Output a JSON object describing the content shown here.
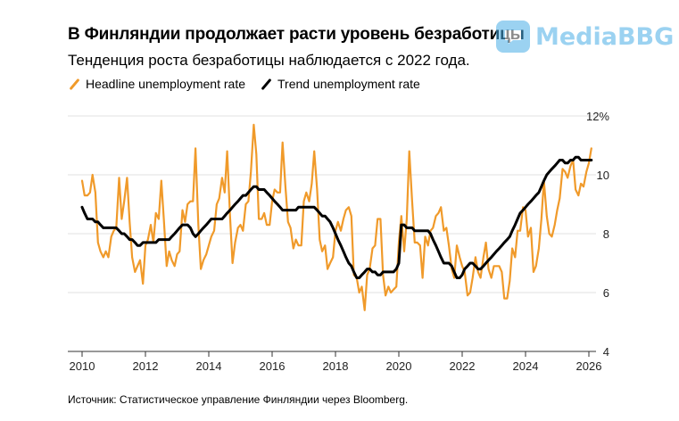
{
  "title": "В Финляндии продолжает расти уровень безработицы",
  "subtitle": "Тенденция роста безработицы наблюдается с 2022 года.",
  "legend": {
    "headline": "Headline unemployment rate",
    "trend": "Trend unemployment rate"
  },
  "source": "Источник: Статистическое управление Финляндии через Bloomberg.",
  "watermark": "MediaBBG",
  "colors": {
    "headline": "#f09a2a",
    "trend": "#000000",
    "grid": "#e0e0e0",
    "axis": "#333333",
    "watermark": "#4aaee6"
  },
  "chart_data": {
    "type": "line",
    "title": "В Финляндии продолжает расти уровень безработицы",
    "xlabel": "",
    "ylabel": "",
    "xlim": [
      2010,
      2026.3
    ],
    "ylim": [
      4,
      12
    ],
    "y_ticks": [
      4,
      6,
      8,
      10,
      12
    ],
    "y_tick_labels": [
      "4",
      "6",
      "8",
      "10",
      "12%"
    ],
    "x_ticks": [
      2010,
      2012,
      2014,
      2016,
      2018,
      2020,
      2022,
      2024,
      2026
    ],
    "x_tick_labels": [
      "2010",
      "2012",
      "2014",
      "2016",
      "2018",
      "2020",
      "2022",
      "2024",
      "2026"
    ],
    "grid": true,
    "series": [
      {
        "name": "Headline unemployment rate",
        "x": [
          2010.0,
          2010.08,
          2010.17,
          2010.25,
          2010.33,
          2010.42,
          2010.5,
          2010.58,
          2010.67,
          2010.75,
          2010.83,
          2010.92,
          2011.0,
          2011.08,
          2011.17,
          2011.25,
          2011.33,
          2011.42,
          2011.5,
          2011.58,
          2011.67,
          2011.75,
          2011.83,
          2011.92,
          2012.0,
          2012.08,
          2012.17,
          2012.25,
          2012.33,
          2012.42,
          2012.5,
          2012.58,
          2012.67,
          2012.75,
          2012.83,
          2012.92,
          2013.0,
          2013.08,
          2013.17,
          2013.25,
          2013.33,
          2013.42,
          2013.5,
          2013.58,
          2013.67,
          2013.75,
          2013.83,
          2013.92,
          2014.0,
          2014.08,
          2014.17,
          2014.25,
          2014.33,
          2014.42,
          2014.5,
          2014.58,
          2014.67,
          2014.75,
          2014.83,
          2014.92,
          2015.0,
          2015.08,
          2015.17,
          2015.25,
          2015.33,
          2015.42,
          2015.5,
          2015.58,
          2015.67,
          2015.75,
          2015.83,
          2015.92,
          2016.0,
          2016.08,
          2016.17,
          2016.25,
          2016.33,
          2016.42,
          2016.5,
          2016.58,
          2016.67,
          2016.75,
          2016.83,
          2016.92,
          2017.0,
          2017.08,
          2017.17,
          2017.25,
          2017.33,
          2017.42,
          2017.5,
          2017.58,
          2017.67,
          2017.75,
          2017.83,
          2017.92,
          2018.0,
          2018.08,
          2018.17,
          2018.25,
          2018.33,
          2018.42,
          2018.5,
          2018.58,
          2018.67,
          2018.75,
          2018.83,
          2018.92,
          2019.0,
          2019.08,
          2019.17,
          2019.25,
          2019.33,
          2019.42,
          2019.5,
          2019.58,
          2019.67,
          2019.75,
          2019.83,
          2019.92,
          2020.0,
          2020.08,
          2020.17,
          2020.25,
          2020.33,
          2020.42,
          2020.5,
          2020.58,
          2020.67,
          2020.75,
          2020.83,
          2020.92,
          2021.0,
          2021.08,
          2021.17,
          2021.25,
          2021.33,
          2021.42,
          2021.5,
          2021.58,
          2021.67,
          2021.75,
          2021.83,
          2021.92,
          2022.0,
          2022.08,
          2022.17,
          2022.25,
          2022.33,
          2022.42,
          2022.5,
          2022.58,
          2022.67,
          2022.75,
          2022.83,
          2022.92,
          2023.0,
          2023.08,
          2023.17,
          2023.25,
          2023.33,
          2023.42,
          2023.5,
          2023.58,
          2023.67,
          2023.75,
          2023.83,
          2023.92,
          2024.0,
          2024.08,
          2024.17,
          2024.25,
          2024.33,
          2024.42,
          2024.5,
          2024.58,
          2024.67,
          2024.75,
          2024.83,
          2024.92,
          2025.0,
          2025.08,
          2025.17,
          2025.25,
          2025.33,
          2025.42,
          2025.5,
          2025.58,
          2025.67,
          2025.75,
          2025.83,
          2025.92,
          2026.0,
          2026.08
        ],
        "values": [
          9.8,
          9.3,
          9.3,
          9.4,
          10.0,
          9.4,
          7.7,
          7.4,
          7.2,
          7.4,
          7.2,
          7.9,
          8.1,
          8.2,
          9.9,
          8.5,
          9.1,
          9.9,
          8.4,
          7.2,
          6.7,
          6.9,
          7.1,
          6.3,
          7.6,
          7.8,
          8.3,
          7.7,
          8.7,
          8.5,
          9.8,
          8.5,
          6.9,
          7.4,
          7.1,
          6.9,
          7.3,
          7.4,
          8.8,
          8.4,
          9.0,
          9.1,
          9.1,
          10.9,
          8.3,
          6.8,
          7.1,
          7.3,
          7.6,
          7.9,
          8.1,
          9.0,
          9.2,
          9.9,
          9.4,
          10.8,
          8.6,
          7.0,
          7.7,
          8.2,
          8.3,
          8.1,
          9.0,
          9.1,
          10.1,
          11.7,
          10.7,
          8.5,
          8.5,
          8.7,
          8.3,
          8.3,
          9.1,
          9.5,
          9.4,
          9.4,
          11.1,
          9.6,
          8.4,
          8.2,
          7.5,
          7.8,
          7.6,
          7.6,
          9.1,
          9.4,
          9.1,
          9.7,
          10.8,
          9.5,
          7.8,
          7.4,
          7.6,
          6.8,
          7.0,
          7.2,
          8.1,
          8.4,
          8.1,
          8.5,
          8.8,
          8.9,
          8.6,
          6.6,
          6.5,
          6.0,
          6.2,
          5.4,
          6.6,
          6.8,
          7.5,
          7.6,
          8.5,
          8.5,
          6.6,
          5.9,
          6.2,
          6.0,
          6.1,
          6.2,
          7.7,
          8.6,
          7.4,
          8.5,
          10.8,
          9.1,
          7.7,
          7.7,
          7.6,
          6.5,
          7.9,
          7.6,
          8.1,
          8.2,
          8.6,
          8.7,
          8.9,
          8.1,
          8.2,
          7.6,
          6.8,
          6.5,
          7.6,
          7.2,
          6.9,
          6.7,
          5.9,
          6.0,
          6.5,
          7.2,
          6.7,
          6.5,
          7.2,
          7.7,
          6.8,
          6.5,
          6.9,
          6.9,
          6.9,
          6.7,
          5.8,
          5.8,
          6.4,
          7.5,
          7.2,
          8.1,
          8.1,
          8.9,
          8.8,
          7.9,
          8.2,
          6.7,
          6.9,
          7.5,
          8.5,
          9.8,
          8.6,
          8.0,
          7.9,
          8.3,
          8.8,
          9.2,
          10.2,
          10.1,
          9.9,
          10.3,
          10.5,
          9.5,
          9.3,
          9.7,
          9.6,
          10.1,
          10.4,
          10.9
        ]
      },
      {
        "name": "Trend unemployment rate",
        "x": [
          2010.0,
          2010.08,
          2010.17,
          2010.25,
          2010.33,
          2010.42,
          2010.5,
          2010.58,
          2010.67,
          2010.75,
          2010.83,
          2010.92,
          2011.0,
          2011.08,
          2011.17,
          2011.25,
          2011.33,
          2011.42,
          2011.5,
          2011.58,
          2011.67,
          2011.75,
          2011.83,
          2011.92,
          2012.0,
          2012.08,
          2012.17,
          2012.25,
          2012.33,
          2012.42,
          2012.5,
          2012.58,
          2012.67,
          2012.75,
          2012.83,
          2012.92,
          2013.0,
          2013.08,
          2013.17,
          2013.25,
          2013.33,
          2013.42,
          2013.5,
          2013.58,
          2013.67,
          2013.75,
          2013.83,
          2013.92,
          2014.0,
          2014.08,
          2014.17,
          2014.25,
          2014.33,
          2014.42,
          2014.5,
          2014.58,
          2014.67,
          2014.75,
          2014.83,
          2014.92,
          2015.0,
          2015.08,
          2015.17,
          2015.25,
          2015.33,
          2015.42,
          2015.5,
          2015.58,
          2015.67,
          2015.75,
          2015.83,
          2015.92,
          2016.0,
          2016.08,
          2016.17,
          2016.25,
          2016.33,
          2016.42,
          2016.5,
          2016.58,
          2016.67,
          2016.75,
          2016.83,
          2016.92,
          2017.0,
          2017.08,
          2017.17,
          2017.25,
          2017.33,
          2017.42,
          2017.5,
          2017.58,
          2017.67,
          2017.75,
          2017.83,
          2017.92,
          2018.0,
          2018.08,
          2018.17,
          2018.25,
          2018.33,
          2018.42,
          2018.5,
          2018.58,
          2018.67,
          2018.75,
          2018.83,
          2018.92,
          2019.0,
          2019.08,
          2019.17,
          2019.25,
          2019.33,
          2019.42,
          2019.5,
          2019.58,
          2019.67,
          2019.75,
          2019.83,
          2019.92,
          2020.0,
          2020.08,
          2020.17,
          2020.25,
          2020.33,
          2020.42,
          2020.5,
          2020.58,
          2020.67,
          2020.75,
          2020.83,
          2020.92,
          2021.0,
          2021.08,
          2021.17,
          2021.25,
          2021.33,
          2021.42,
          2021.5,
          2021.58,
          2021.67,
          2021.75,
          2021.83,
          2021.92,
          2022.0,
          2022.08,
          2022.17,
          2022.25,
          2022.33,
          2022.42,
          2022.5,
          2022.58,
          2022.67,
          2022.75,
          2022.83,
          2022.92,
          2023.0,
          2023.08,
          2023.17,
          2023.25,
          2023.33,
          2023.42,
          2023.5,
          2023.58,
          2023.67,
          2023.75,
          2023.83,
          2023.92,
          2024.0,
          2024.08,
          2024.17,
          2024.25,
          2024.33,
          2024.42,
          2024.5,
          2024.58,
          2024.67,
          2024.75,
          2024.83,
          2024.92,
          2025.0,
          2025.08,
          2025.17,
          2025.25,
          2025.33,
          2025.42,
          2025.5,
          2025.58,
          2025.67,
          2025.75,
          2025.83,
          2025.92,
          2026.0,
          2026.08
        ],
        "values": [
          8.9,
          8.7,
          8.5,
          8.5,
          8.5,
          8.4,
          8.4,
          8.3,
          8.2,
          8.2,
          8.2,
          8.2,
          8.2,
          8.2,
          8.1,
          8.0,
          8.0,
          7.9,
          7.8,
          7.8,
          7.7,
          7.6,
          7.6,
          7.7,
          7.7,
          7.7,
          7.7,
          7.7,
          7.7,
          7.8,
          7.8,
          7.8,
          7.8,
          7.8,
          7.9,
          8.0,
          8.1,
          8.2,
          8.3,
          8.3,
          8.3,
          8.2,
          8.0,
          7.9,
          8.0,
          8.1,
          8.2,
          8.3,
          8.4,
          8.5,
          8.5,
          8.5,
          8.5,
          8.5,
          8.6,
          8.7,
          8.8,
          8.9,
          9.0,
          9.1,
          9.2,
          9.3,
          9.3,
          9.4,
          9.5,
          9.6,
          9.6,
          9.5,
          9.5,
          9.5,
          9.4,
          9.3,
          9.2,
          9.1,
          9.0,
          8.9,
          8.8,
          8.8,
          8.8,
          8.8,
          8.8,
          8.8,
          8.9,
          8.9,
          8.9,
          8.9,
          8.9,
          8.9,
          8.9,
          8.8,
          8.7,
          8.6,
          8.6,
          8.5,
          8.4,
          8.2,
          8.0,
          7.8,
          7.6,
          7.4,
          7.2,
          7.0,
          6.9,
          6.7,
          6.5,
          6.5,
          6.6,
          6.7,
          6.8,
          6.8,
          6.7,
          6.7,
          6.6,
          6.6,
          6.7,
          6.7,
          6.7,
          6.7,
          6.7,
          6.8,
          7.0,
          8.3,
          8.3,
          8.2,
          8.2,
          8.2,
          8.1,
          8.1,
          8.1,
          8.1,
          8.1,
          8.1,
          8.0,
          7.8,
          7.6,
          7.4,
          7.2,
          7.0,
          7.0,
          7.0,
          6.9,
          6.7,
          6.5,
          6.5,
          6.6,
          6.8,
          6.9,
          7.0,
          7.0,
          6.9,
          6.8,
          6.8,
          6.9,
          7.0,
          7.1,
          7.2,
          7.3,
          7.4,
          7.5,
          7.6,
          7.7,
          7.8,
          7.9,
          8.1,
          8.3,
          8.5,
          8.7,
          8.8,
          8.9,
          9.0,
          9.1,
          9.2,
          9.3,
          9.4,
          9.6,
          9.8,
          10.0,
          10.1,
          10.2,
          10.3,
          10.4,
          10.5,
          10.5,
          10.4,
          10.4,
          10.5,
          10.5,
          10.6,
          10.6,
          10.5,
          10.5,
          10.5,
          10.5,
          10.5
        ]
      }
    ]
  }
}
